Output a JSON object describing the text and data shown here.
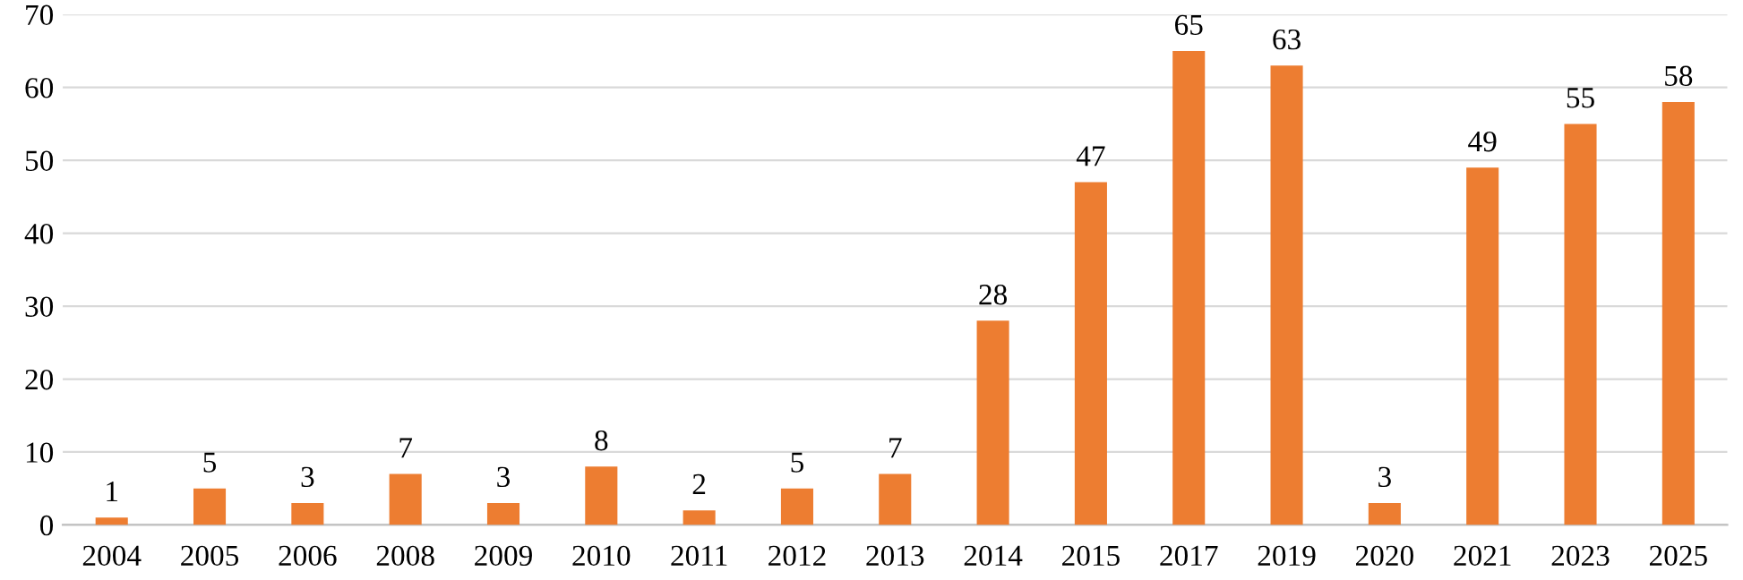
{
  "chart_data": {
    "type": "bar",
    "categories": [
      "2004",
      "2005",
      "2006",
      "2008",
      "2009",
      "2010",
      "2011",
      "2012",
      "2013",
      "2014",
      "2015",
      "2017",
      "2019",
      "2020",
      "2021",
      "2023",
      "2025"
    ],
    "values": [
      1,
      5,
      3,
      7,
      3,
      8,
      2,
      5,
      7,
      28,
      47,
      65,
      63,
      3,
      49,
      55,
      58
    ],
    "color": "#ed7d31",
    "ylim": [
      0,
      70
    ],
    "yticks": [
      0,
      10,
      20,
      30,
      40,
      50,
      60,
      70
    ],
    "grid": "y",
    "data_labels": true
  }
}
